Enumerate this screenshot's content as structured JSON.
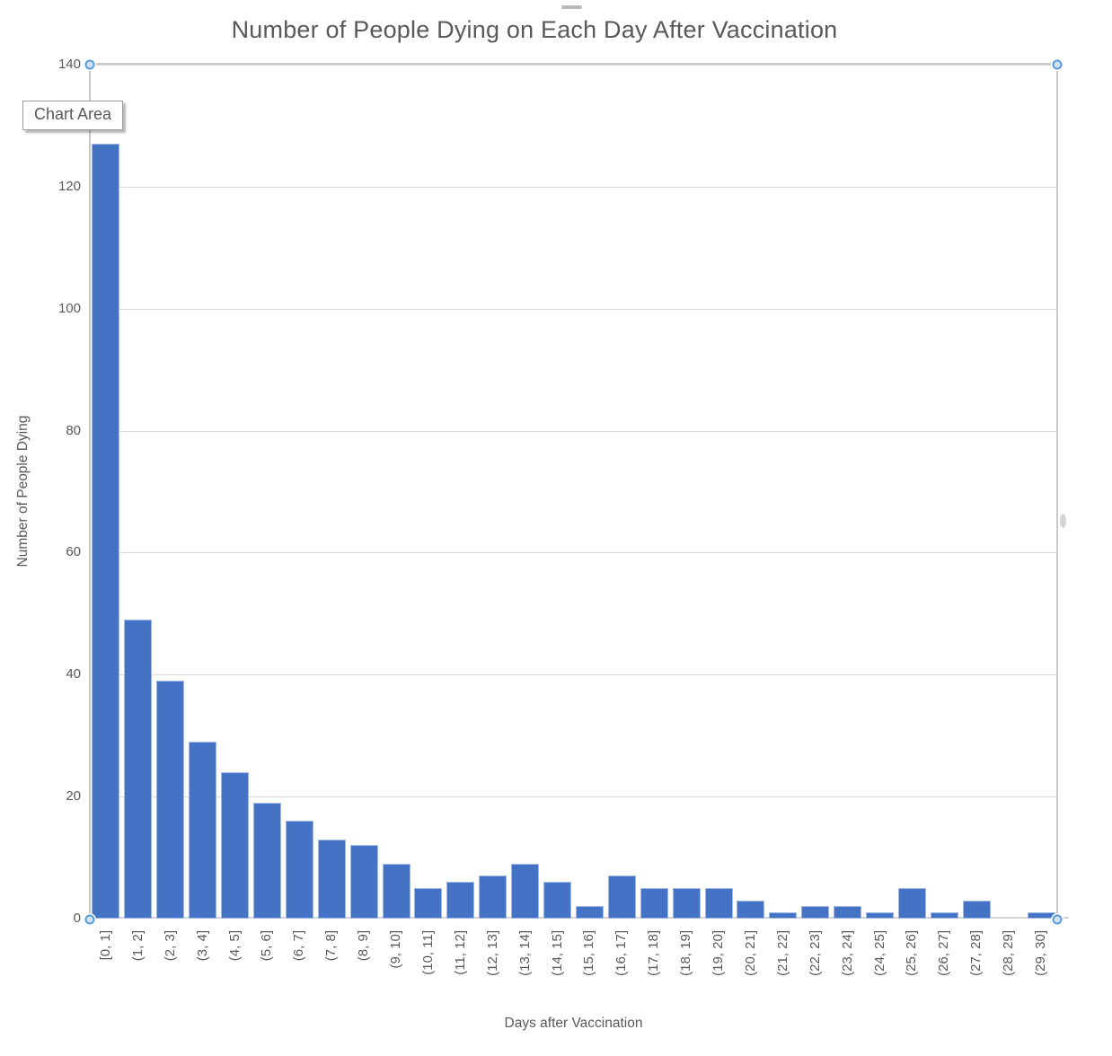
{
  "tooltip": {
    "label": "Chart Area"
  },
  "chart_data": {
    "type": "bar",
    "title": "Number of People Dying on Each Day After Vaccination",
    "xlabel": "Days after Vaccination",
    "ylabel": "Number of People Dying",
    "categories": [
      "[0, 1]",
      "(1, 2]",
      "(2, 3]",
      "(3, 4]",
      "(4, 5]",
      "(5, 6]",
      "(6, 7]",
      "(7, 8]",
      "(8, 9]",
      "(9, 10]",
      "(10, 11]",
      "(11, 12]",
      "(12, 13]",
      "(13, 14]",
      "(14, 15]",
      "(15, 16]",
      "(16, 17]",
      "(17, 18]",
      "(18, 19]",
      "(19, 20]",
      "(20, 21]",
      "(21, 22]",
      "(22, 23]",
      "(23, 24]",
      "(24, 25]",
      "(25, 26]",
      "(26, 27]",
      "(27, 28]",
      "(28, 29]",
      "(29, 30]"
    ],
    "values": [
      127,
      49,
      39,
      29,
      24,
      19,
      16,
      13,
      12,
      9,
      5,
      6,
      7,
      9,
      6,
      2,
      7,
      5,
      5,
      5,
      3,
      1,
      2,
      2,
      1,
      5,
      1,
      3,
      0,
      1
    ],
    "ylim": [
      0,
      140
    ],
    "yticks": [
      0,
      20,
      40,
      60,
      80,
      100,
      120,
      140
    ],
    "grid": true,
    "legend": false,
    "bar_color": "#4472C4",
    "gridline_color": "#DADADA",
    "text_color": "#595959",
    "selection_border_color": "#C8C8C8",
    "handle_fill": "#CFE4F7",
    "handle_stroke": "#5B9BD5"
  }
}
